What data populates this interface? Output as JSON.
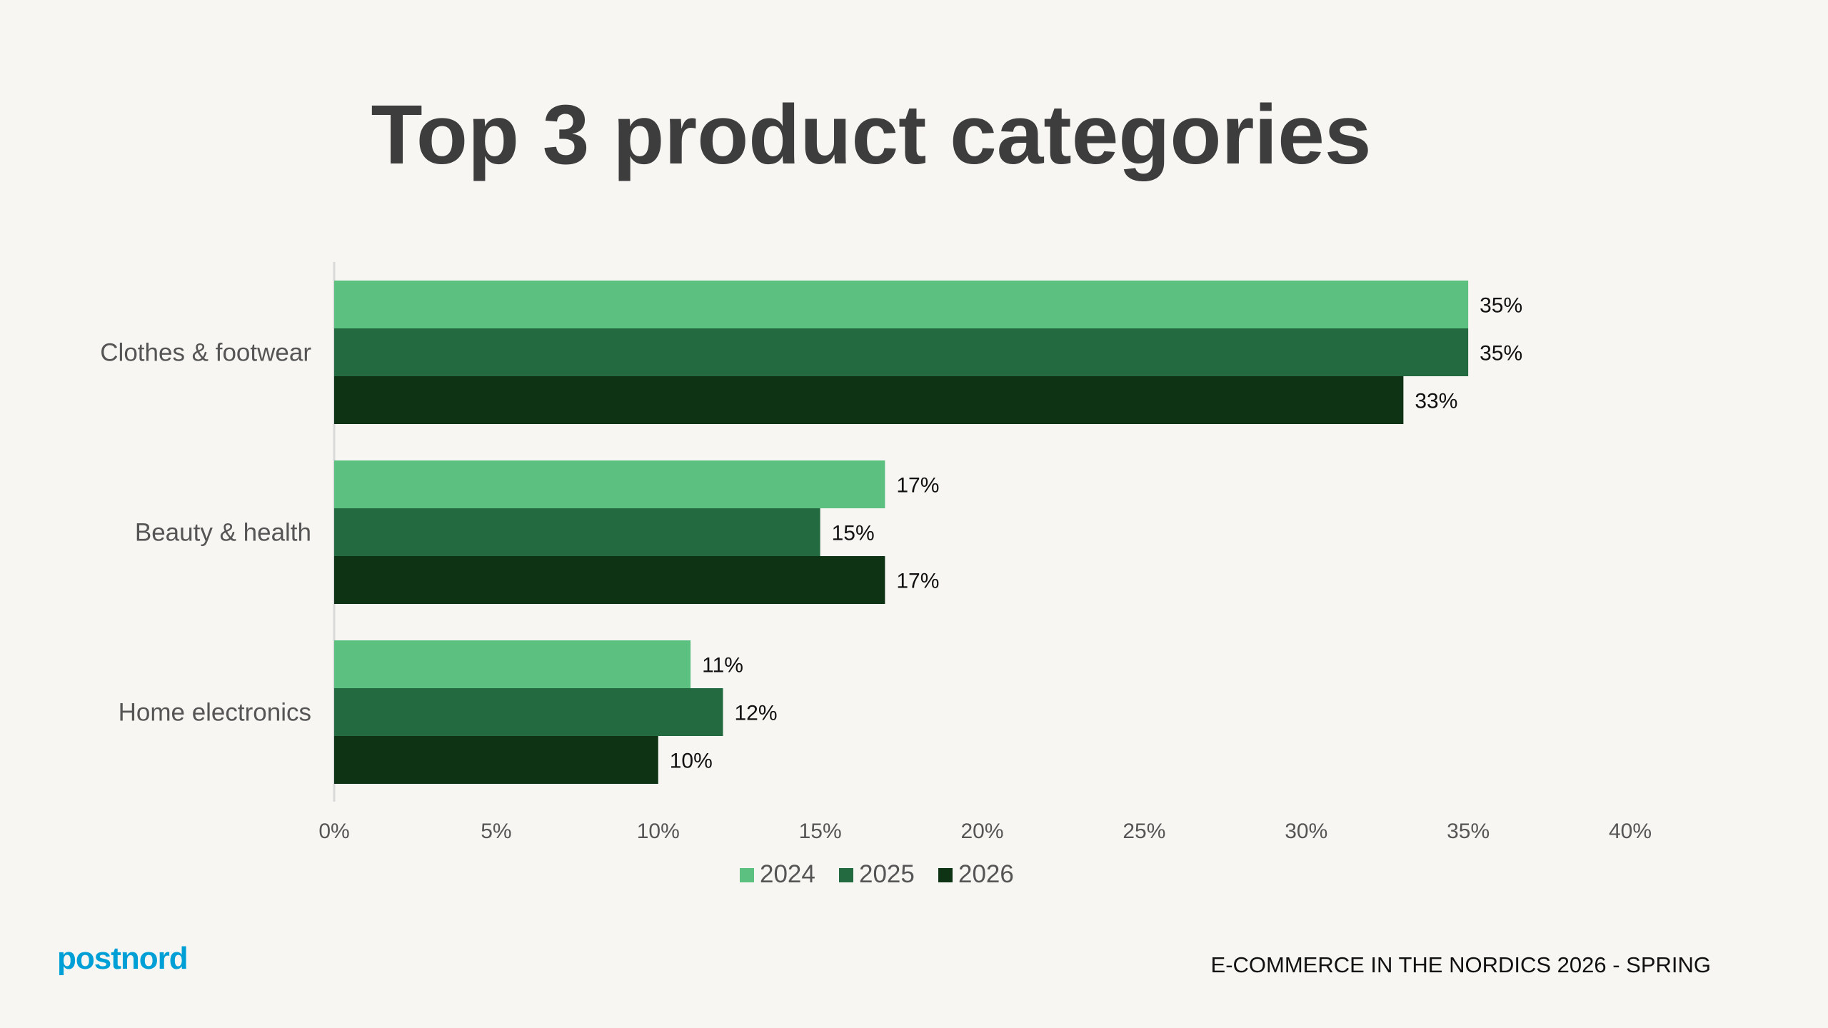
{
  "title": "Top 3 product categories",
  "footer": "E-COMMERCE IN THE NORDICS 2026 - SPRING",
  "logo": "postnord",
  "colors": {
    "background": "#f7f6f3",
    "2024": "#5cc081",
    "2025": "#246a40",
    "2026": "#0d3314",
    "logo": "#00a0d6"
  },
  "chart_data": {
    "type": "bar",
    "orientation": "horizontal",
    "title": "Top 3 product categories",
    "categories": [
      "Clothes & footwear",
      "Beauty & health",
      "Home electronics"
    ],
    "series": [
      {
        "name": "2024",
        "values": [
          35,
          17,
          11
        ],
        "color": "#5cc081"
      },
      {
        "name": "2025",
        "values": [
          35,
          15,
          12
        ],
        "color": "#246a40"
      },
      {
        "name": "2026",
        "values": [
          33,
          17,
          10
        ],
        "color": "#0d3314"
      }
    ],
    "xlim": [
      0,
      40
    ],
    "xticks": [
      "0%",
      "5%",
      "10%",
      "15%",
      "20%",
      "25%",
      "30%",
      "35%",
      "40%"
    ],
    "value_format": "percent",
    "grid": false,
    "legend": "bottom"
  }
}
